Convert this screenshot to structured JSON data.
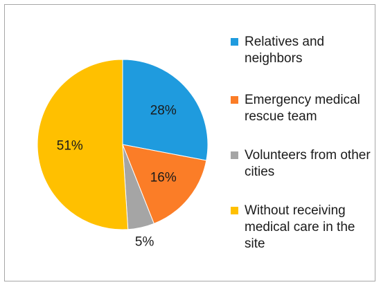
{
  "chart_data": {
    "type": "pie",
    "title": "",
    "slices": [
      {
        "label": "Relatives and neighbors",
        "value": 28,
        "display": "28%",
        "color": "#1f9bde"
      },
      {
        "label": "Emergency medical rescue team",
        "value": 16,
        "display": "16%",
        "color": "#fb7d27"
      },
      {
        "label": "Volunteers from other cities",
        "value": 5,
        "display": "5%",
        "color": "#a5a5a5"
      },
      {
        "label": "Without receiving medical care in the site",
        "value": 51,
        "display": "51%",
        "color": "#ffc000"
      }
    ],
    "legend_position": "right",
    "start_angle": "12 o'clock",
    "direction": "clockwise"
  }
}
